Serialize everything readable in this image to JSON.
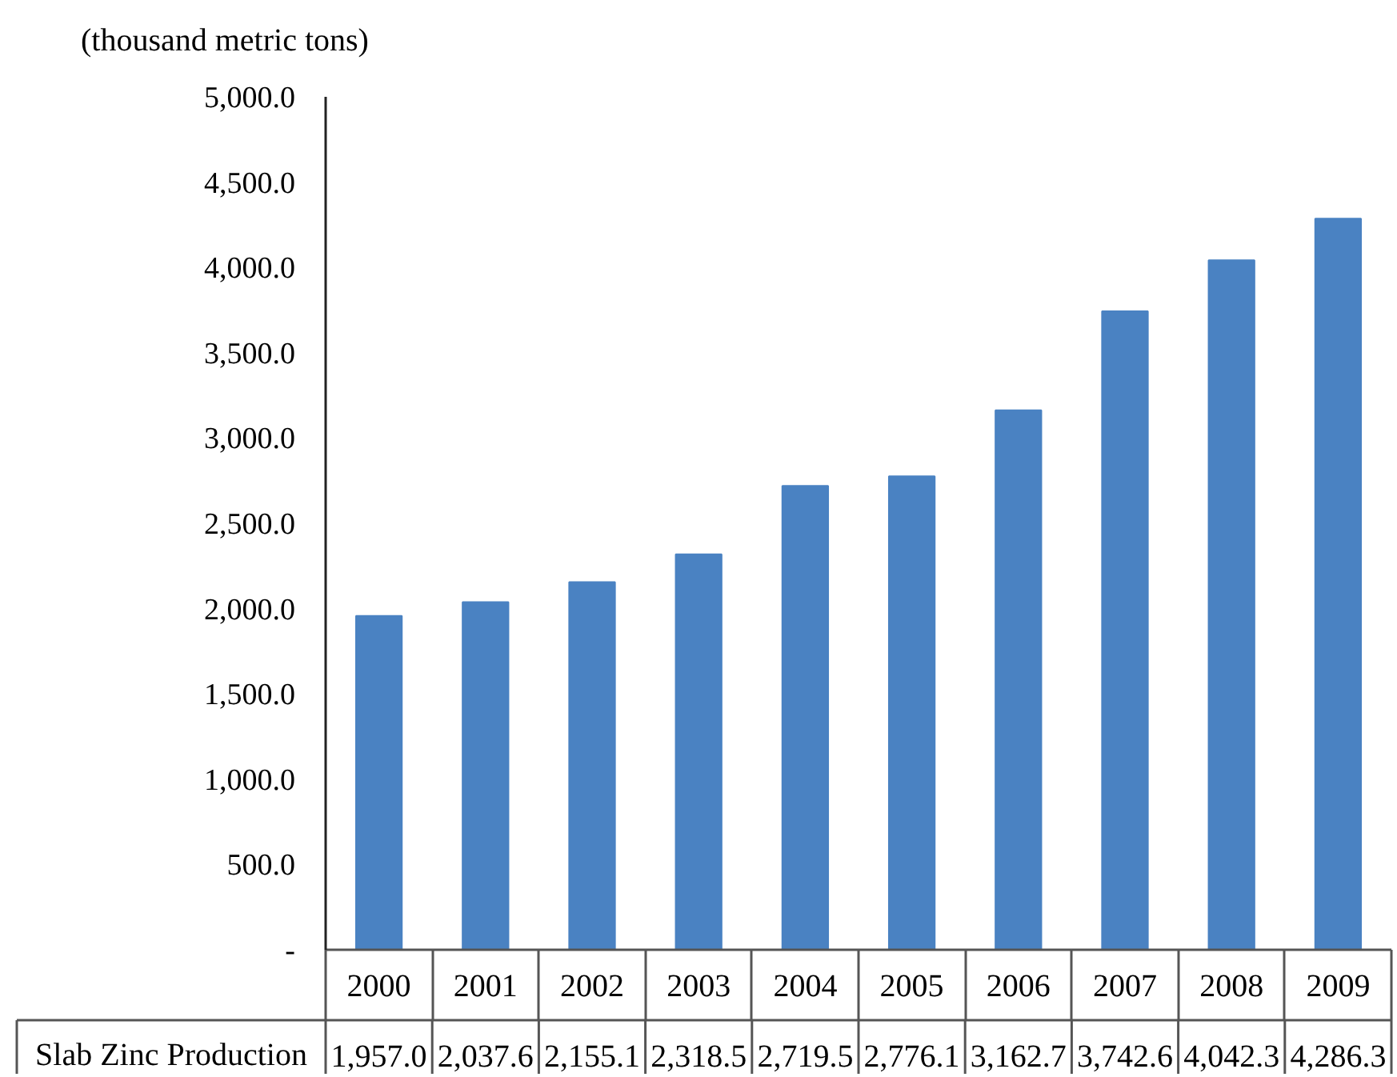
{
  "chart_data": {
    "type": "bar",
    "ylabel": "(thousand metric tons)",
    "categories": [
      "2000",
      "2001",
      "2002",
      "2003",
      "2004",
      "2005",
      "2006",
      "2007",
      "2008",
      "2009"
    ],
    "series": [
      {
        "name": "Slab Zinc Production",
        "color": "#4a82c2",
        "values": [
          1957.0,
          2037.6,
          2155.1,
          2318.5,
          2719.5,
          2776.1,
          3162.7,
          3742.6,
          4042.3,
          4286.3
        ],
        "value_labels": [
          "1,957.0",
          "2,037.6",
          "2,155.1",
          "2,318.5",
          "2,719.5",
          "2,776.1",
          "3,162.7",
          "3,742.6",
          "4,042.3",
          "4,286.3"
        ]
      }
    ],
    "ylim": [
      0,
      5000
    ],
    "yticks": [
      {
        "value": 0,
        "label": "-"
      },
      {
        "value": 500,
        "label": "500.0"
      },
      {
        "value": 1000,
        "label": "1,000.0"
      },
      {
        "value": 1500,
        "label": "1,500.0"
      },
      {
        "value": 2000,
        "label": "2,000.0"
      },
      {
        "value": 2500,
        "label": "2,500.0"
      },
      {
        "value": 3000,
        "label": "3,000.0"
      },
      {
        "value": 3500,
        "label": "3,500.0"
      },
      {
        "value": 4000,
        "label": "4,000.0"
      },
      {
        "value": 4500,
        "label": "4,500.0"
      },
      {
        "value": 5000,
        "label": "5,000.0"
      }
    ],
    "grid": false,
    "legend": false
  }
}
